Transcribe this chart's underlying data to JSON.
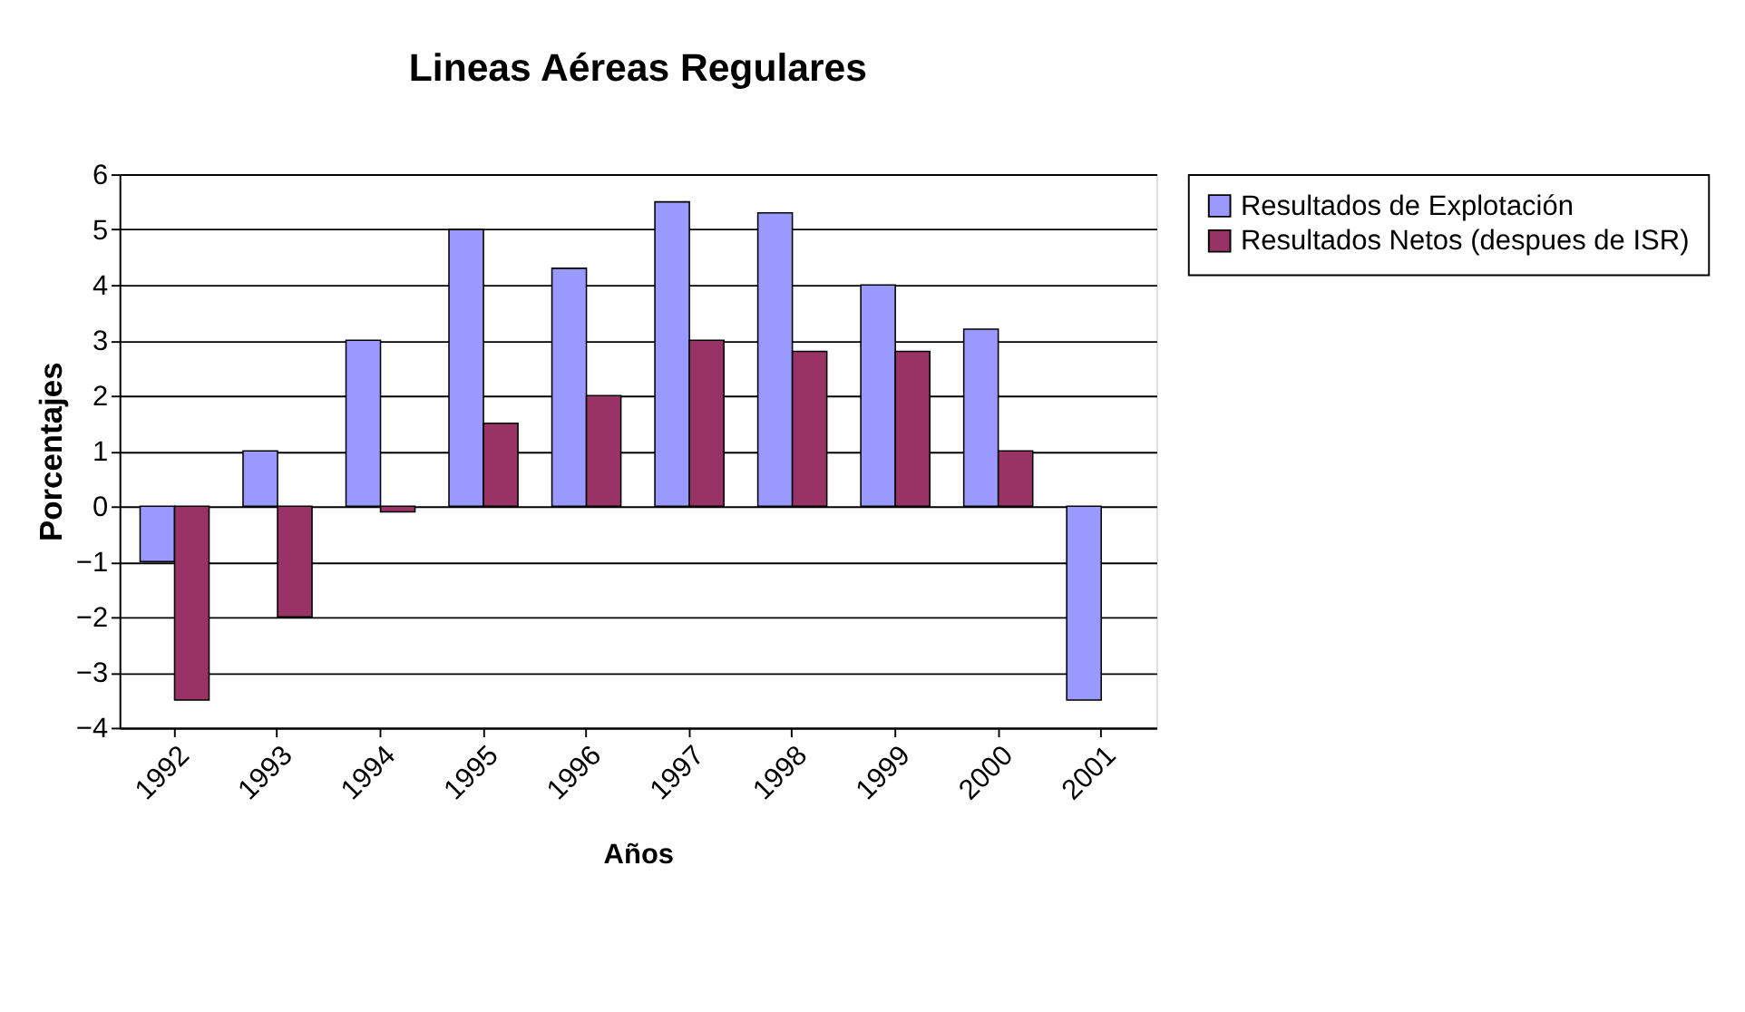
{
  "chart_data": {
    "type": "bar",
    "title": "Lineas Aéreas Regulares",
    "xlabel": "Años",
    "ylabel": "Porcentajes",
    "categories": [
      "1992",
      "1993",
      "1994",
      "1995",
      "1996",
      "1997",
      "1998",
      "1999",
      "2000",
      "2001"
    ],
    "series": [
      {
        "name": "Resultados de Explotación",
        "color": "#9999ff",
        "values": [
          -1,
          1,
          3,
          5,
          4.3,
          5.5,
          5.3,
          4,
          3.2,
          -3.5
        ]
      },
      {
        "name": "Resultados Netos (despues de ISR)",
        "color": "#993366",
        "values": [
          -3.5,
          -2,
          -0.1,
          1.5,
          2,
          3,
          2.8,
          2.8,
          1,
          null
        ]
      }
    ],
    "ylim": [
      -4,
      6
    ],
    "yticks": [
      -4,
      -3,
      -2,
      -1,
      0,
      1,
      2,
      3,
      4,
      5,
      6
    ],
    "grid": "y",
    "legend": "right"
  }
}
